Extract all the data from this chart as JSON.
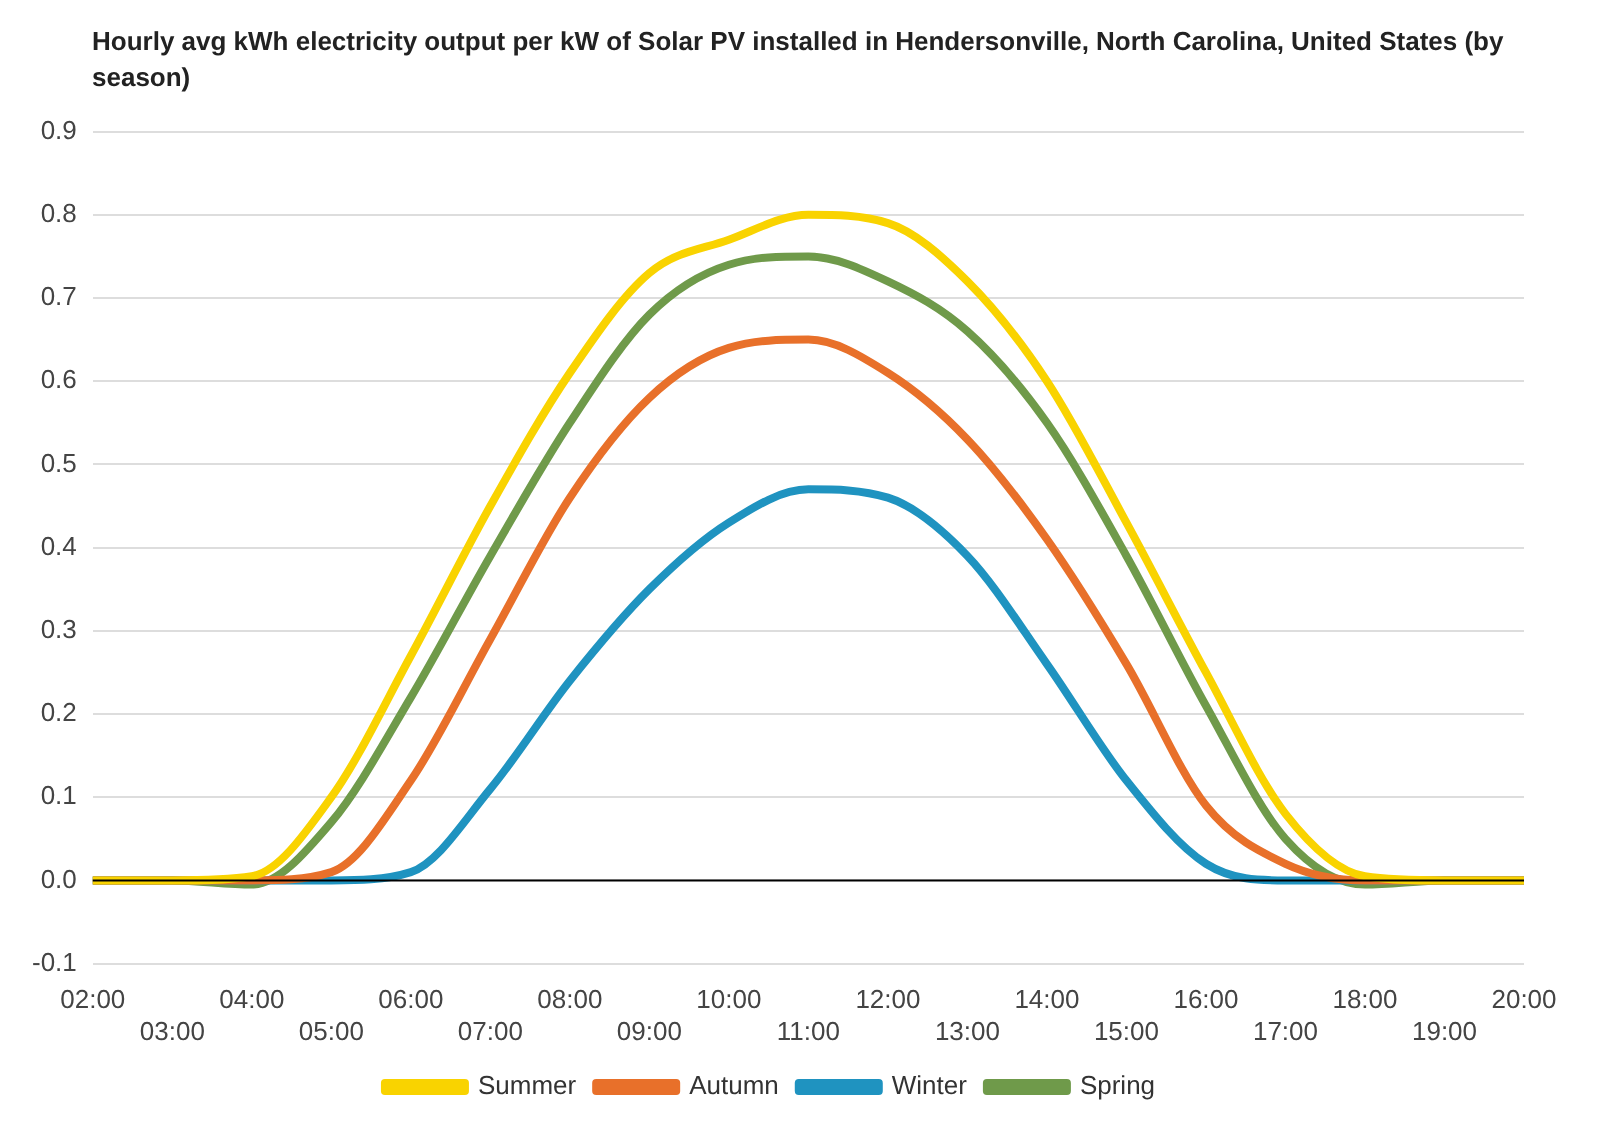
{
  "chart_data": {
    "type": "line",
    "title": "Hourly avg kWh electricity output per kW of Solar PV installed in Hendersonville, North Carolina, United States (by season)",
    "categories": [
      "02:00",
      "03:00",
      "04:00",
      "05:00",
      "06:00",
      "07:00",
      "08:00",
      "09:00",
      "10:00",
      "11:00",
      "12:00",
      "13:00",
      "14:00",
      "15:00",
      "16:00",
      "17:00",
      "18:00",
      "19:00",
      "20:00"
    ],
    "series": [
      {
        "name": "Summer",
        "color": "#f9d300",
        "values": [
          0,
          0,
          0.005,
          0.1,
          0.27,
          0.45,
          0.61,
          0.73,
          0.77,
          0.8,
          0.79,
          0.72,
          0.6,
          0.43,
          0.25,
          0.08,
          0.005,
          0,
          0
        ]
      },
      {
        "name": "Autumn",
        "color": "#e8702a",
        "values": [
          0,
          0,
          0,
          0.01,
          0.12,
          0.29,
          0.46,
          0.58,
          0.64,
          0.65,
          0.61,
          0.53,
          0.41,
          0.26,
          0.09,
          0.02,
          0,
          0,
          0
        ]
      },
      {
        "name": "Winter",
        "color": "#1f93c0",
        "values": [
          0,
          0,
          0,
          0,
          0.01,
          0.11,
          0.24,
          0.35,
          0.43,
          0.47,
          0.46,
          0.39,
          0.26,
          0.12,
          0.02,
          0,
          0,
          0,
          0
        ]
      },
      {
        "name": "Spring",
        "color": "#6f9a4a",
        "values": [
          0,
          0,
          -0.005,
          0.07,
          0.22,
          0.39,
          0.55,
          0.68,
          0.74,
          0.75,
          0.72,
          0.66,
          0.55,
          0.39,
          0.21,
          0.05,
          -0.005,
          0,
          0
        ]
      }
    ],
    "ylim": [
      -0.1,
      0.9
    ],
    "yticks": [
      -0.1,
      {
        "value": 0,
        "label": "0.0"
      },
      0.1,
      0.2,
      0.3,
      0.4,
      0.5,
      0.6,
      0.7,
      0.8,
      0.9
    ],
    "grid": "y",
    "legend": "bottom",
    "marker": "none",
    "line_style": "solid",
    "ref_lines": [
      {
        "axis": "y",
        "value": 0,
        "color": "#000000"
      }
    ]
  }
}
